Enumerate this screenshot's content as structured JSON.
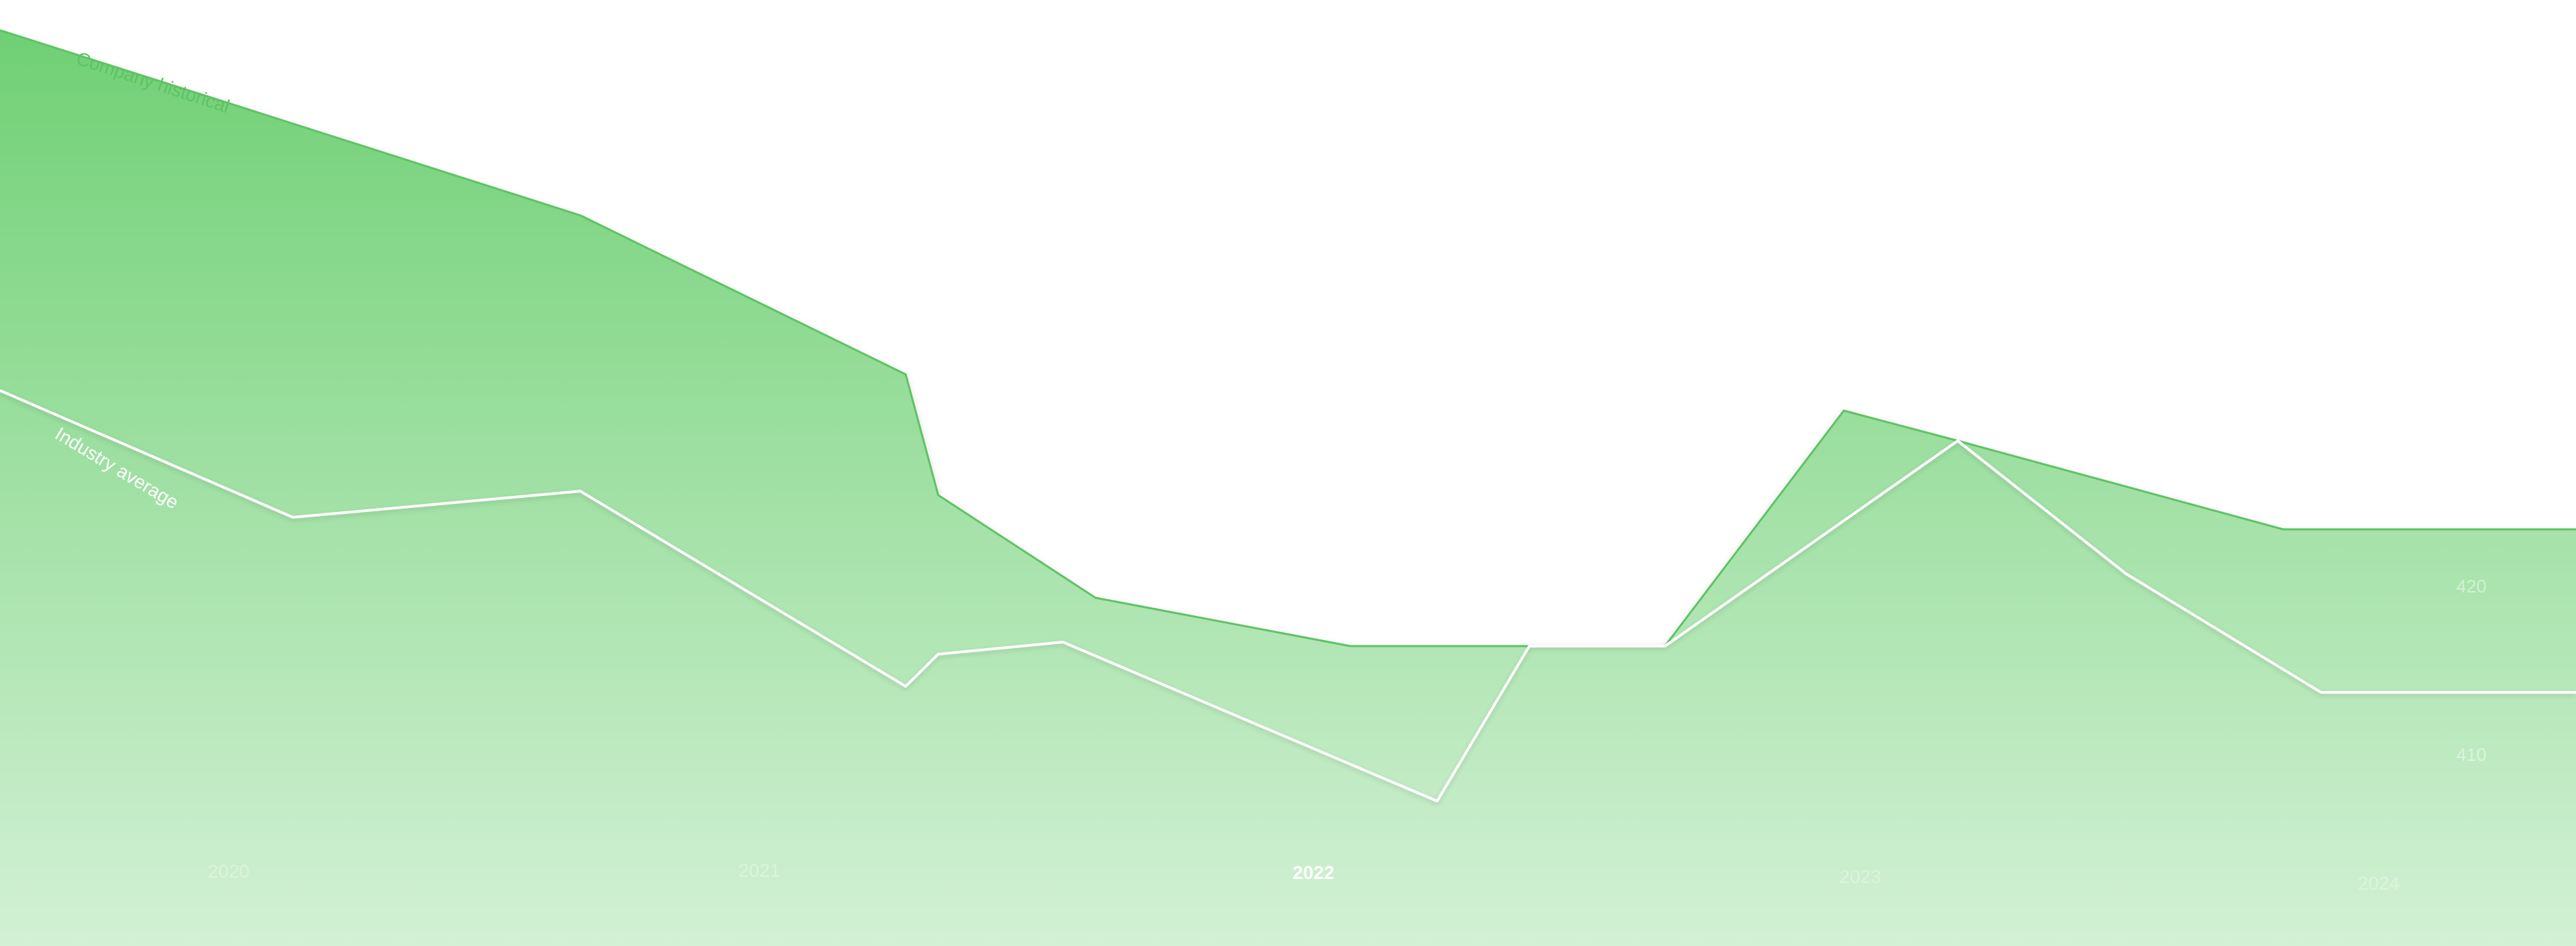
{
  "chart_data": {
    "type": "area",
    "title": "",
    "xlabel": "",
    "ylabel": "",
    "x_ticks": [
      "2020",
      "2021",
      "2022",
      "2023",
      "2024"
    ],
    "highlighted_x_tick": "2022",
    "y_ticks": [
      420,
      410
    ],
    "ylim": [
      398,
      445
    ],
    "series": [
      {
        "name": "Company historical",
        "style": "filled-area",
        "x": [
          2019.6,
          2020.67,
          2021.27,
          2021.33,
          2021.62,
          2022.09,
          2022.38,
          2022.67,
          2023.0,
          2023.21,
          2023.81,
          2024.35
        ],
        "values": [
          443.5,
          434.3,
          426.4,
          420.4,
          415.3,
          412.9,
          412.9,
          412.9,
          424.6,
          423.1,
          418.7,
          418.7
        ]
      },
      {
        "name": "Industry average",
        "style": "line",
        "x": [
          2019.6,
          2020.14,
          2020.67,
          2021.27,
          2021.33,
          2021.56,
          2022.25,
          2022.42,
          2022.67,
          2023.21,
          2023.52,
          2023.88,
          2024.35
        ],
        "values": [
          425.6,
          419.3,
          420.6,
          410.9,
          412.5,
          413.1,
          405.2,
          412.9,
          412.9,
          423.1,
          416.5,
          410.6,
          410.6
        ]
      }
    ],
    "colors": {
      "area_top": "#6fd074",
      "area_bottom": "#d3f1d5",
      "company_line": "#5ec364",
      "company_label": "#5ec364",
      "industry_line": "#ffffff",
      "tick_label": "#ffffff",
      "highlight_tick_label": "#ffffff"
    },
    "grid": false,
    "legend": "inline-labels"
  }
}
